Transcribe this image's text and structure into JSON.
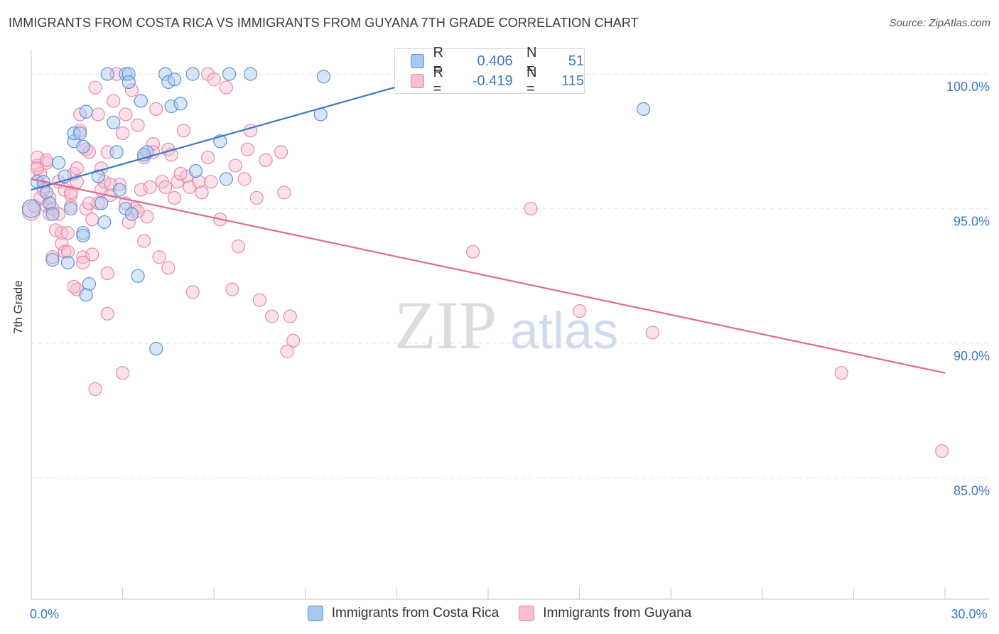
{
  "header": {
    "title": "IMMIGRANTS FROM COSTA RICA VS IMMIGRANTS FROM GUYANA 7TH GRADE CORRELATION CHART",
    "source": "Source: ZipAtlas.com"
  },
  "watermark": {
    "part1": "ZIP",
    "part2": "atlas"
  },
  "legend": {
    "r_label": "R =",
    "n_label": "N =",
    "series": [
      {
        "r": "0.406",
        "n": "51"
      },
      {
        "r": "-0.419",
        "n": "115"
      }
    ]
  },
  "colors": {
    "blue_fill": "#a8c8f0",
    "blue_stroke": "#5b93d8",
    "blue_line": "#3a78c8",
    "pink_fill": "#f7bdd0",
    "pink_stroke": "#e88aaa",
    "pink_line": "#e06a96",
    "tick_label": "#3d78c8",
    "grid": "#e3e3e3"
  },
  "chart_data": {
    "type": "scatter",
    "title": "IMMIGRANTS FROM COSTA RICA VS IMMIGRANTS FROM GUYANA 7TH GRADE CORRELATION CHART",
    "xlabel": "",
    "ylabel": "7th Grade",
    "xlim": [
      0,
      30
    ],
    "ylim": [
      80.5,
      100.9
    ],
    "x_tick_labels": [
      {
        "value": 0,
        "label": "0.0%"
      },
      {
        "value": 30,
        "label": "30.0%"
      }
    ],
    "y_ticks": [
      {
        "value": 100,
        "label": "100.0%"
      },
      {
        "value": 95,
        "label": "95.0%"
      },
      {
        "value": 90,
        "label": "90.0%"
      },
      {
        "value": 85,
        "label": "85.0%"
      }
    ],
    "series": [
      {
        "name": "Immigrants from Costa Rica",
        "r": 0.406,
        "n": 51,
        "trend": {
          "x": [
            0,
            13.5
          ],
          "y": [
            95.7,
            100.0
          ]
        },
        "points": [
          [
            0.0,
            95.0,
            1.4
          ],
          [
            0.2,
            96.0,
            1
          ],
          [
            0.4,
            96.0,
            1
          ],
          [
            0.5,
            95.6,
            1
          ],
          [
            0.6,
            95.2,
            1
          ],
          [
            0.7,
            94.8,
            1
          ],
          [
            0.9,
            96.7,
            1
          ],
          [
            1.1,
            96.2,
            1
          ],
          [
            1.3,
            95.0,
            1
          ],
          [
            1.4,
            97.5,
            1
          ],
          [
            1.4,
            97.8,
            1
          ],
          [
            1.6,
            97.8,
            1
          ],
          [
            1.7,
            97.3,
            1
          ],
          [
            1.8,
            98.6,
            1
          ],
          [
            1.7,
            94.1,
            1
          ],
          [
            1.9,
            92.2,
            1
          ],
          [
            1.8,
            91.8,
            1
          ],
          [
            2.2,
            96.2,
            1
          ],
          [
            2.3,
            95.2,
            1
          ],
          [
            2.4,
            94.5,
            1
          ],
          [
            2.5,
            100.0,
            1
          ],
          [
            2.7,
            98.2,
            1
          ],
          [
            2.8,
            97.1,
            1
          ],
          [
            2.9,
            95.7,
            1
          ],
          [
            3.1,
            95.0,
            1
          ],
          [
            3.1,
            100.0,
            1
          ],
          [
            3.2,
            100.0,
            1
          ],
          [
            3.2,
            99.7,
            1
          ],
          [
            3.3,
            94.8,
            1
          ],
          [
            3.5,
            92.5,
            1
          ],
          [
            3.6,
            99.0,
            1
          ],
          [
            3.8,
            97.1,
            1
          ],
          [
            4.1,
            89.8,
            1
          ],
          [
            4.4,
            100.0,
            1
          ],
          [
            4.5,
            99.7,
            1
          ],
          [
            4.6,
            98.8,
            1
          ],
          [
            4.7,
            99.8,
            1
          ],
          [
            4.9,
            98.9,
            1
          ],
          [
            5.3,
            100.0,
            1
          ],
          [
            5.4,
            96.4,
            1
          ],
          [
            6.2,
            97.5,
            1
          ],
          [
            6.4,
            96.1,
            1
          ],
          [
            6.5,
            100.0,
            1
          ],
          [
            7.2,
            100.0,
            1
          ],
          [
            9.5,
            98.5,
            1
          ],
          [
            9.6,
            99.9,
            1
          ],
          [
            20.1,
            98.7,
            1
          ],
          [
            0.7,
            93.1,
            1
          ],
          [
            1.2,
            93.0,
            1
          ],
          [
            1.7,
            94.0,
            1
          ],
          [
            3.7,
            97.0,
            1
          ]
        ]
      },
      {
        "name": "Immigrants from Guyana",
        "r": -0.419,
        "n": 115,
        "trend": {
          "x": [
            0,
            30
          ],
          "y": [
            96.1,
            88.9
          ]
        },
        "points": [
          [
            0.0,
            94.9,
            1.4
          ],
          [
            0.1,
            95.1,
            1
          ],
          [
            0.2,
            96.6,
            1
          ],
          [
            0.2,
            96.9,
            1
          ],
          [
            0.3,
            96.3,
            1
          ],
          [
            0.4,
            95.8,
            1
          ],
          [
            0.5,
            96.7,
            1
          ],
          [
            0.5,
            96.8,
            1
          ],
          [
            0.5,
            95.1,
            1
          ],
          [
            0.6,
            94.8,
            1
          ],
          [
            0.6,
            95.4,
            1
          ],
          [
            0.7,
            95.0,
            1
          ],
          [
            0.7,
            93.2,
            1
          ],
          [
            0.8,
            94.2,
            1
          ],
          [
            0.9,
            96.0,
            1
          ],
          [
            1.0,
            94.1,
            1
          ],
          [
            1.0,
            93.7,
            1
          ],
          [
            1.1,
            93.4,
            1
          ],
          [
            1.1,
            95.7,
            1
          ],
          [
            1.2,
            93.4,
            1
          ],
          [
            1.2,
            94.1,
            1
          ],
          [
            1.3,
            95.5,
            1
          ],
          [
            1.3,
            95.1,
            1
          ],
          [
            1.4,
            96.3,
            1
          ],
          [
            1.5,
            96.5,
            1
          ],
          [
            1.5,
            96.0,
            1
          ],
          [
            1.5,
            92.0,
            1
          ],
          [
            1.6,
            98.5,
            1
          ],
          [
            1.6,
            97.9,
            1
          ],
          [
            1.7,
            93.2,
            1
          ],
          [
            1.7,
            93.0,
            1
          ],
          [
            1.8,
            95.0,
            1
          ],
          [
            1.8,
            97.2,
            1
          ],
          [
            1.9,
            97.1,
            1
          ],
          [
            1.9,
            95.2,
            1
          ],
          [
            2.0,
            94.6,
            1
          ],
          [
            2.0,
            93.3,
            1
          ],
          [
            2.1,
            99.5,
            1
          ],
          [
            2.1,
            88.3,
            1
          ],
          [
            2.2,
            98.5,
            1
          ],
          [
            2.3,
            95.7,
            1
          ],
          [
            2.3,
            96.5,
            1
          ],
          [
            2.4,
            96.0,
            1
          ],
          [
            2.5,
            97.1,
            1
          ],
          [
            2.5,
            92.6,
            1
          ],
          [
            2.5,
            91.1,
            1
          ],
          [
            2.6,
            95.5,
            1
          ],
          [
            2.7,
            99.0,
            1
          ],
          [
            2.8,
            100.0,
            1
          ],
          [
            2.9,
            95.9,
            1
          ],
          [
            3.0,
            97.8,
            1
          ],
          [
            3.1,
            98.5,
            1
          ],
          [
            3.2,
            94.5,
            1
          ],
          [
            3.3,
            99.4,
            1
          ],
          [
            3.4,
            95.0,
            1
          ],
          [
            3.5,
            98.1,
            1
          ],
          [
            3.6,
            95.7,
            1
          ],
          [
            3.7,
            96.9,
            1
          ],
          [
            3.7,
            93.8,
            1
          ],
          [
            3.8,
            94.7,
            1
          ],
          [
            3.9,
            95.8,
            1
          ],
          [
            4.0,
            97.4,
            1
          ],
          [
            4.0,
            97.1,
            1
          ],
          [
            4.1,
            98.7,
            1
          ],
          [
            4.2,
            93.2,
            1
          ],
          [
            4.3,
            96.0,
            1
          ],
          [
            4.4,
            95.8,
            1
          ],
          [
            4.5,
            97.2,
            1
          ],
          [
            4.5,
            92.8,
            1
          ],
          [
            4.6,
            97.0,
            1
          ],
          [
            4.7,
            95.4,
            1
          ],
          [
            4.8,
            96.0,
            1
          ],
          [
            5.0,
            97.9,
            1
          ],
          [
            5.1,
            96.2,
            1
          ],
          [
            5.2,
            95.8,
            1
          ],
          [
            5.3,
            91.9,
            1
          ],
          [
            5.5,
            96.0,
            1
          ],
          [
            5.6,
            95.6,
            1
          ],
          [
            5.8,
            96.9,
            1
          ],
          [
            5.8,
            100.0,
            1
          ],
          [
            6.0,
            99.8,
            1
          ],
          [
            6.2,
            94.6,
            1
          ],
          [
            6.4,
            99.5,
            1
          ],
          [
            6.6,
            92.0,
            1
          ],
          [
            6.7,
            96.6,
            1
          ],
          [
            6.8,
            93.6,
            1
          ],
          [
            7.0,
            96.1,
            1
          ],
          [
            7.1,
            97.2,
            1
          ],
          [
            7.2,
            97.9,
            1
          ],
          [
            7.4,
            95.4,
            1
          ],
          [
            7.5,
            91.6,
            1
          ],
          [
            7.7,
            96.8,
            1
          ],
          [
            7.9,
            91.0,
            1
          ],
          [
            8.2,
            97.1,
            1
          ],
          [
            8.3,
            95.6,
            1
          ],
          [
            8.4,
            89.7,
            1
          ],
          [
            8.5,
            91.0,
            1
          ],
          [
            8.6,
            90.1,
            1
          ],
          [
            3.0,
            88.9,
            1
          ],
          [
            5.9,
            96.0,
            1
          ],
          [
            1.4,
            92.1,
            1
          ],
          [
            2.2,
            95.2,
            1
          ],
          [
            3.1,
            95.2,
            1
          ],
          [
            14.5,
            93.4,
            1
          ],
          [
            16.4,
            95.0,
            1
          ],
          [
            18.0,
            91.2,
            1
          ],
          [
            20.4,
            90.4,
            1
          ],
          [
            26.6,
            88.9,
            1
          ],
          [
            29.9,
            86.0,
            1
          ],
          [
            0.2,
            96.5,
            1
          ],
          [
            0.3,
            95.4,
            1
          ],
          [
            0.4,
            95.7,
            1
          ],
          [
            0.9,
            94.8,
            1
          ],
          [
            1.3,
            95.6,
            1
          ],
          [
            2.6,
            95.9,
            1
          ],
          [
            3.5,
            94.9,
            1
          ],
          [
            4.9,
            96.3,
            1
          ]
        ]
      }
    ]
  }
}
